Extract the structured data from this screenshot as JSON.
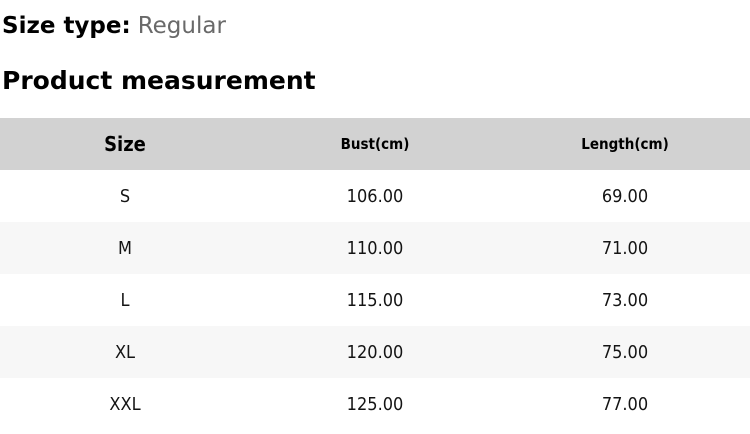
{
  "size_type": {
    "label": "Size type:",
    "value": "Regular"
  },
  "section_title": "Product measurement",
  "table": {
    "columns": [
      "Size",
      "Bust(cm)",
      "Length(cm)"
    ],
    "rows": [
      {
        "size": "S",
        "bust": "106.00",
        "length": "69.00"
      },
      {
        "size": "M",
        "bust": "110.00",
        "length": "71.00"
      },
      {
        "size": "L",
        "bust": "115.00",
        "length": "73.00"
      },
      {
        "size": "XL",
        "bust": "120.00",
        "length": "75.00"
      },
      {
        "size": "XXL",
        "bust": "125.00",
        "length": "77.00"
      }
    ]
  },
  "colors": {
    "header_bg": "#d2d2d2",
    "stripe_bg": "#f7f7f7",
    "muted_text": "#696969"
  }
}
